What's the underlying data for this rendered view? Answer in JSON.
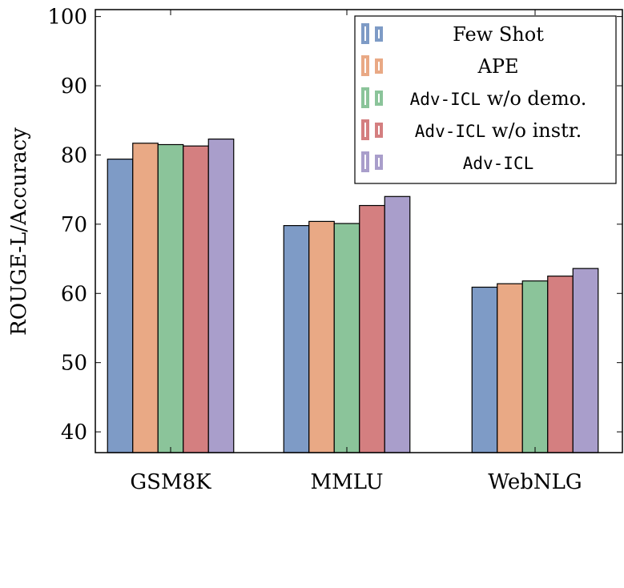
{
  "chart_data": {
    "type": "bar",
    "ylabel": "ROUGE-L/Accuracy",
    "xlabel": "",
    "ylim": [
      37,
      101
    ],
    "yticks": [
      40,
      50,
      60,
      70,
      80,
      90,
      100
    ],
    "categories": [
      "GSM8K",
      "MMLU",
      "WebNLG"
    ],
    "legend_position": "top-right",
    "grid": false,
    "series": [
      {
        "name": "Few Shot",
        "name_mono": "",
        "name_rest": "Few Shot",
        "color": "#7e9bc6",
        "values": [
          79.4,
          69.8,
          60.9
        ]
      },
      {
        "name": "APE",
        "name_mono": "",
        "name_rest": "APE",
        "color": "#e9a985",
        "values": [
          81.7,
          70.4,
          61.4
        ]
      },
      {
        "name": "Adv-ICL w/o demo.",
        "name_mono": "Adv-ICL",
        "name_rest": " w/o demo.",
        "color": "#8bc49a",
        "values": [
          81.5,
          70.1,
          61.8
        ]
      },
      {
        "name": "Adv-ICL w/o instr.",
        "name_mono": "Adv-ICL",
        "name_rest": " w/o instr.",
        "color": "#d47f80",
        "values": [
          81.3,
          72.7,
          62.5
        ]
      },
      {
        "name": "Adv-ICL",
        "name_mono": "Adv-ICL",
        "name_rest": "",
        "color": "#a99ecb",
        "values": [
          82.3,
          74.0,
          63.6
        ]
      }
    ]
  }
}
